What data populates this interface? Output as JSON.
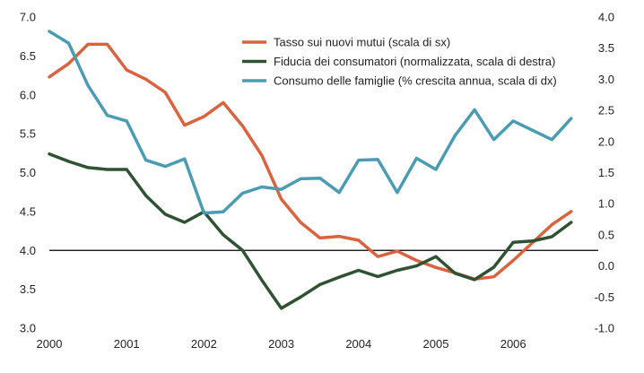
{
  "chart_data": {
    "type": "line",
    "title": "",
    "xlabel": "",
    "ylabel_left": "",
    "ylabel_right": "",
    "x_ticks": [
      "2000",
      "2001",
      "2002",
      "2003",
      "2004",
      "2005",
      "2006"
    ],
    "xlim": [
      2000,
      2007.1
    ],
    "y_left": {
      "lim": [
        3.0,
        7.0
      ],
      "ticks": [
        "3.0",
        "3.5",
        "4.0",
        "4.5",
        "5.0",
        "5.5",
        "6.0",
        "6.5",
        "7.0"
      ]
    },
    "y_right": {
      "lim": [
        -1.0,
        4.0
      ],
      "ticks": [
        "-1.0",
        "-0.5",
        "0.0",
        "0.5",
        "1.0",
        "1.5",
        "2.0",
        "2.5",
        "3.0",
        "3.5",
        "4.0"
      ]
    },
    "reference_line": {
      "axis": "left",
      "value": 4.0,
      "color": "#000000"
    },
    "grid": false,
    "legend_position": "top-right",
    "series": [
      {
        "name": "Tasso sui nuovi mutui (scala di sx)",
        "axis": "left",
        "color": "#D9633F",
        "x": [
          2000.0,
          2000.25,
          2000.5,
          2000.75,
          2001.0,
          2001.25,
          2001.5,
          2001.75,
          2002.0,
          2002.25,
          2002.5,
          2002.75,
          2003.0,
          2003.25,
          2003.5,
          2003.75,
          2004.0,
          2004.25,
          2004.5,
          2004.75,
          2005.0,
          2005.25,
          2005.5,
          2005.75,
          2006.0,
          2006.25,
          2006.5,
          2006.75
        ],
        "values": [
          6.23,
          6.4,
          6.65,
          6.65,
          6.32,
          6.2,
          6.03,
          5.61,
          5.72,
          5.9,
          5.6,
          5.22,
          4.66,
          4.36,
          4.16,
          4.18,
          4.13,
          3.92,
          3.99,
          3.87,
          3.78,
          3.71,
          3.63,
          3.66,
          3.87,
          4.1,
          4.33,
          4.5
        ]
      },
      {
        "name": "Fiducia dei consumatori (normalizzata, scala di destra)",
        "axis": "right",
        "color": "#2F5233",
        "x": [
          2000.0,
          2000.25,
          2000.5,
          2000.75,
          2001.0,
          2001.25,
          2001.5,
          2001.75,
          2002.0,
          2002.25,
          2002.5,
          2002.75,
          2003.0,
          2003.25,
          2003.5,
          2003.75,
          2004.0,
          2004.25,
          2004.5,
          2004.75,
          2005.0,
          2005.25,
          2005.5,
          2005.75,
          2006.0,
          2006.25,
          2006.5,
          2006.75
        ],
        "values": [
          1.8,
          1.68,
          1.58,
          1.55,
          1.55,
          1.13,
          0.83,
          0.7,
          0.87,
          0.5,
          0.25,
          -0.23,
          -0.68,
          -0.5,
          -0.3,
          -0.18,
          -0.07,
          -0.17,
          -0.07,
          0.0,
          0.15,
          -0.12,
          -0.22,
          -0.02,
          0.38,
          0.4,
          0.47,
          0.7
        ]
      },
      {
        "name": "Consumo delle famiglie (% crescita annua, scala di dx)",
        "axis": "right",
        "color": "#4A9CB2",
        "x": [
          2000.0,
          2000.25,
          2000.5,
          2000.75,
          2001.0,
          2001.25,
          2001.5,
          2001.75,
          2002.0,
          2002.25,
          2002.5,
          2002.75,
          2003.0,
          2003.25,
          2003.5,
          2003.75,
          2004.0,
          2004.25,
          2004.5,
          2004.75,
          2005.0,
          2005.25,
          2005.5,
          2005.75,
          2006.0,
          2006.25,
          2006.5,
          2006.75
        ],
        "values": [
          3.77,
          3.58,
          2.9,
          2.42,
          2.33,
          1.7,
          1.6,
          1.72,
          0.85,
          0.87,
          1.17,
          1.27,
          1.23,
          1.4,
          1.41,
          1.18,
          1.7,
          1.71,
          1.18,
          1.73,
          1.55,
          2.1,
          2.51,
          2.03,
          2.33,
          2.18,
          2.03,
          2.37
        ]
      }
    ]
  }
}
